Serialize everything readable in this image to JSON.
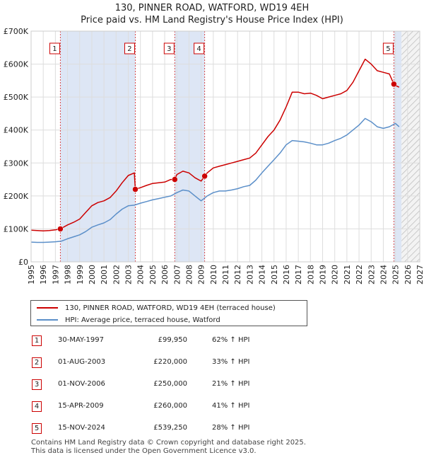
{
  "title_line1": "130, PINNER ROAD, WATFORD, WD19 4EH",
  "title_line2": "Price paid vs. HM Land Registry's House Price Index (HPI)",
  "colors": {
    "property": "#cc0000",
    "hpi": "#5b8fc9",
    "shade": "#dde6f5",
    "marker": "#cc0000"
  },
  "chart_data": {
    "type": "line",
    "xlim": [
      1995,
      2027
    ],
    "ylim": [
      0,
      700000
    ],
    "y_ticks": [
      0,
      100000,
      200000,
      300000,
      400000,
      500000,
      600000,
      700000
    ],
    "y_tick_labels": [
      "£0",
      "£100K",
      "£200K",
      "£300K",
      "£400K",
      "£500K",
      "£600K",
      "£700K"
    ],
    "x_ticks": [
      1995,
      1996,
      1997,
      1998,
      1999,
      2000,
      2001,
      2002,
      2003,
      2004,
      2005,
      2006,
      2007,
      2008,
      2009,
      2010,
      2011,
      2012,
      2013,
      2014,
      2015,
      2016,
      2017,
      2018,
      2019,
      2020,
      2021,
      2022,
      2023,
      2024,
      2025,
      2026,
      2027
    ],
    "x_tick_labels": [
      "1995",
      "1996",
      "1997",
      "1998",
      "1999",
      "2000",
      "2001",
      "2002",
      "2003",
      "2004",
      "2005",
      "2006",
      "2007",
      "2008",
      "2009",
      "2010",
      "2011",
      "2012",
      "2013",
      "2014",
      "2015",
      "2016",
      "2017",
      "2018",
      "2019",
      "2020",
      "2021",
      "2022",
      "2023",
      "2024",
      "2025",
      "2026",
      "2027"
    ],
    "shaded_spans": [
      [
        1997.41,
        2003.58
      ],
      [
        2006.83,
        2009.29
      ],
      [
        2024.87,
        2025.5
      ]
    ],
    "hatched_span": [
      2025.5,
      2027
    ],
    "series": [
      {
        "name": "130, PINNER ROAD, WATFORD, WD19 4EH (terraced house)",
        "x": [
          1995.0,
          1995.5,
          1996.0,
          1996.5,
          1997.0,
          1997.41,
          1998.0,
          1998.5,
          1999.0,
          1999.5,
          2000.0,
          2000.5,
          2001.0,
          2001.5,
          2002.0,
          2002.5,
          2003.0,
          2003.5,
          2003.58,
          2004.0,
          2004.5,
          2005.0,
          2005.5,
          2006.0,
          2006.5,
          2006.83,
          2007.0,
          2007.5,
          2008.0,
          2008.5,
          2009.0,
          2009.29,
          2009.5,
          2010.0,
          2010.5,
          2011.0,
          2011.5,
          2012.0,
          2012.5,
          2013.0,
          2013.5,
          2014.0,
          2014.5,
          2015.0,
          2015.5,
          2016.0,
          2016.5,
          2017.0,
          2017.5,
          2018.0,
          2018.5,
          2019.0,
          2019.5,
          2020.0,
          2020.5,
          2021.0,
          2021.5,
          2022.0,
          2022.5,
          2023.0,
          2023.5,
          2024.0,
          2024.5,
          2024.87,
          2025.0,
          2025.3
        ],
        "values": [
          96000,
          95000,
          94000,
          95000,
          97000,
          99950,
          112000,
          120000,
          130000,
          150000,
          170000,
          180000,
          185000,
          195000,
          215000,
          240000,
          262000,
          270000,
          220000,
          225000,
          232000,
          238000,
          240000,
          242000,
          250000,
          250000,
          265000,
          275000,
          270000,
          255000,
          245000,
          260000,
          270000,
          285000,
          290000,
          295000,
          300000,
          305000,
          310000,
          315000,
          330000,
          355000,
          380000,
          400000,
          430000,
          470000,
          515000,
          515000,
          510000,
          512000,
          505000,
          495000,
          500000,
          505000,
          510000,
          520000,
          545000,
          580000,
          615000,
          600000,
          580000,
          575000,
          570000,
          539250,
          535000,
          530000
        ]
      },
      {
        "name": "HPI: Average price, terraced house, Watford",
        "x": [
          1995.0,
          1995.5,
          1996.0,
          1996.5,
          1997.0,
          1997.5,
          1998.0,
          1998.5,
          1999.0,
          1999.5,
          2000.0,
          2000.5,
          2001.0,
          2001.5,
          2002.0,
          2002.5,
          2003.0,
          2003.5,
          2004.0,
          2004.5,
          2005.0,
          2005.5,
          2006.0,
          2006.5,
          2007.0,
          2007.5,
          2008.0,
          2008.5,
          2009.0,
          2009.5,
          2010.0,
          2010.5,
          2011.0,
          2011.5,
          2012.0,
          2012.5,
          2013.0,
          2013.5,
          2014.0,
          2014.5,
          2015.0,
          2015.5,
          2016.0,
          2016.5,
          2017.0,
          2017.5,
          2018.0,
          2018.5,
          2019.0,
          2019.5,
          2020.0,
          2020.5,
          2021.0,
          2021.5,
          2022.0,
          2022.5,
          2023.0,
          2023.5,
          2024.0,
          2024.5,
          2025.0,
          2025.3
        ],
        "values": [
          60000,
          59000,
          59000,
          60000,
          61000,
          63000,
          70000,
          76000,
          82000,
          92000,
          105000,
          112000,
          118000,
          128000,
          145000,
          160000,
          170000,
          172000,
          178000,
          183000,
          188000,
          192000,
          196000,
          200000,
          210000,
          218000,
          215000,
          200000,
          185000,
          200000,
          210000,
          215000,
          215000,
          218000,
          222000,
          228000,
          232000,
          248000,
          270000,
          290000,
          310000,
          330000,
          355000,
          368000,
          366000,
          364000,
          360000,
          355000,
          355000,
          360000,
          368000,
          375000,
          385000,
          400000,
          415000,
          435000,
          425000,
          410000,
          405000,
          410000,
          420000,
          410000
        ]
      }
    ],
    "markers": [
      {
        "label": "1",
        "x": 1997.41,
        "y": 99950
      },
      {
        "label": "2",
        "x": 2003.58,
        "y": 220000
      },
      {
        "label": "3",
        "x": 2006.83,
        "y": 250000
      },
      {
        "label": "4",
        "x": 2009.29,
        "y": 260000
      },
      {
        "label": "5",
        "x": 2024.87,
        "y": 539250
      }
    ],
    "legend": [
      "130, PINNER ROAD, WATFORD, WD19 4EH (terraced house)",
      "HPI: Average price, terraced house, Watford"
    ]
  },
  "transactions": [
    {
      "num": "1",
      "date": "30-MAY-1997",
      "price": "£99,950",
      "hpi": "62% ↑ HPI"
    },
    {
      "num": "2",
      "date": "01-AUG-2003",
      "price": "£220,000",
      "hpi": "33% ↑ HPI"
    },
    {
      "num": "3",
      "date": "01-NOV-2006",
      "price": "£250,000",
      "hpi": "21% ↑ HPI"
    },
    {
      "num": "4",
      "date": "15-APR-2009",
      "price": "£260,000",
      "hpi": "41% ↑ HPI"
    },
    {
      "num": "5",
      "date": "15-NOV-2024",
      "price": "£539,250",
      "hpi": "28% ↑ HPI"
    }
  ],
  "footer_line1": "Contains HM Land Registry data © Crown copyright and database right 2025.",
  "footer_line2": "This data is licensed under the Open Government Licence v3.0."
}
